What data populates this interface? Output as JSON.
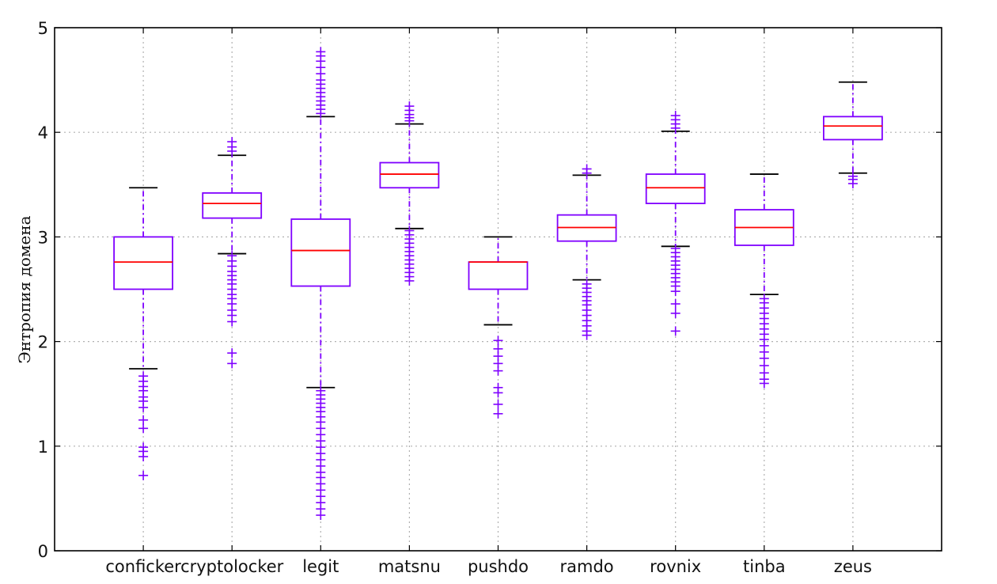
{
  "chart_data": {
    "type": "box",
    "ylabel": "Энтропия домена",
    "xlabel": "",
    "title": "",
    "ylim": [
      0,
      5
    ],
    "yticks": [
      "0",
      "1",
      "2",
      "3",
      "4",
      "5"
    ],
    "grid": true,
    "categories": [
      "conficker",
      "cryptolocker",
      "legit",
      "matsnu",
      "pushdo",
      "ramdo",
      "rovnix",
      "tinba",
      "zeus"
    ],
    "colors": {
      "box": "#7f00ff",
      "median": "#ff0000",
      "cap": "#000000",
      "grid": "#b0b0b0"
    },
    "boxes": [
      {
        "name": "conficker",
        "whisker_low": 1.74,
        "q1": 2.5,
        "median": 2.76,
        "q3": 3.0,
        "whisker_high": 3.47,
        "fliers": [
          1.67,
          1.62,
          1.57,
          1.53,
          1.47,
          1.43,
          1.37,
          1.25,
          1.17,
          0.99,
          0.95,
          0.9,
          0.72
        ]
      },
      {
        "name": "cryptolocker",
        "whisker_low": 2.84,
        "q1": 3.18,
        "median": 3.32,
        "q3": 3.42,
        "whisker_high": 3.78,
        "fliers": [
          2.82,
          2.77,
          2.72,
          2.67,
          2.63,
          2.59,
          2.55,
          2.5,
          2.45,
          2.41,
          2.36,
          2.3,
          2.25,
          2.19,
          1.89,
          1.79,
          3.82,
          3.86,
          3.91
        ]
      },
      {
        "name": "legit",
        "whisker_low": 1.56,
        "q1": 2.53,
        "median": 2.87,
        "q3": 3.17,
        "whisker_high": 4.15,
        "fliers": [
          1.53,
          1.49,
          1.45,
          1.41,
          1.37,
          1.33,
          1.28,
          1.23,
          1.17,
          1.11,
          1.05,
          0.99,
          0.93,
          0.87,
          0.81,
          0.75,
          0.7,
          0.64,
          0.58,
          0.52,
          0.46,
          0.4,
          0.34,
          4.18,
          4.22,
          4.26,
          4.3,
          4.34,
          4.38,
          4.42,
          4.46,
          4.5,
          4.56,
          4.62,
          4.68,
          4.73,
          4.77
        ]
      },
      {
        "name": "matsnu",
        "whisker_low": 3.08,
        "q1": 3.47,
        "median": 3.6,
        "q3": 3.71,
        "whisker_high": 4.08,
        "fliers": [
          3.06,
          3.02,
          2.98,
          2.94,
          2.9,
          2.86,
          2.82,
          2.78,
          2.74,
          2.7,
          2.66,
          2.62,
          2.58,
          4.11,
          4.14,
          4.17,
          4.21,
          4.25
        ]
      },
      {
        "name": "pushdo",
        "whisker_low": 2.16,
        "q1": 2.5,
        "median": 2.76,
        "q3": 2.76,
        "whisker_high": 3.0,
        "fliers": [
          2.01,
          1.93,
          1.86,
          1.79,
          1.72,
          1.56,
          1.51,
          1.4,
          1.31
        ]
      },
      {
        "name": "ramdo",
        "whisker_low": 2.59,
        "q1": 2.96,
        "median": 3.09,
        "q3": 3.21,
        "whisker_high": 3.59,
        "fliers": [
          2.55,
          2.51,
          2.47,
          2.43,
          2.39,
          2.35,
          2.3,
          2.25,
          2.2,
          2.15,
          2.1,
          2.06,
          3.61,
          3.65
        ]
      },
      {
        "name": "rovnix",
        "whisker_low": 2.91,
        "q1": 3.32,
        "median": 3.47,
        "q3": 3.6,
        "whisker_high": 4.01,
        "fliers": [
          2.89,
          2.85,
          2.81,
          2.77,
          2.73,
          2.69,
          2.65,
          2.61,
          2.57,
          2.53,
          2.48,
          2.36,
          2.27,
          2.1,
          4.04,
          4.08,
          4.12,
          4.16
        ]
      },
      {
        "name": "tinba",
        "whisker_low": 2.45,
        "q1": 2.92,
        "median": 3.09,
        "q3": 3.26,
        "whisker_high": 3.6,
        "fliers": [
          2.41,
          2.37,
          2.32,
          2.27,
          2.22,
          2.17,
          2.12,
          2.07,
          2.02,
          1.96,
          1.9,
          1.84,
          1.77,
          1.7,
          1.64,
          1.6
        ]
      },
      {
        "name": "zeus",
        "whisker_low": 3.61,
        "q1": 3.93,
        "median": 4.06,
        "q3": 4.15,
        "whisker_high": 4.48,
        "fliers": [
          3.58,
          3.55,
          3.51
        ]
      }
    ]
  }
}
